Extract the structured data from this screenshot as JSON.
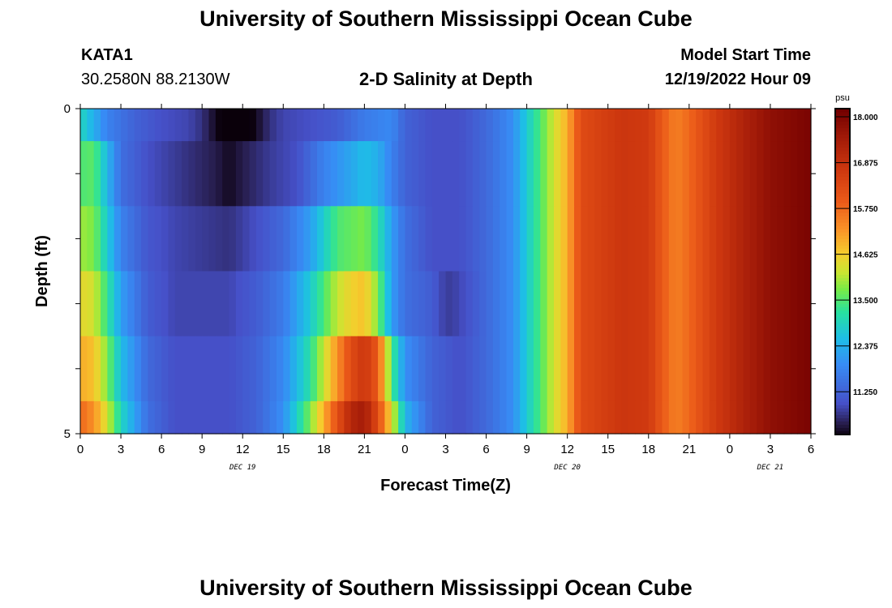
{
  "header": {
    "title": "University of Southern Mississippi Ocean Cube",
    "station": "KATA1",
    "coords": "30.2580N  88.2130W",
    "plot_title": "2-D Salinity at Depth",
    "model_label": "Model Start Time",
    "model_time": "12/19/2022 Hour 09"
  },
  "footer": {
    "title": "University of Southern Mississippi Ocean Cube"
  },
  "chart_data": {
    "type": "heatmap",
    "title": "2-D Salinity at Depth",
    "xlabel": "Forecast Time(Z)",
    "ylabel": "Depth (ft)",
    "x_hours": [
      0,
      3,
      6,
      9,
      12,
      15,
      18,
      21,
      24,
      27,
      30,
      33,
      36,
      39,
      42,
      45,
      48,
      51,
      54
    ],
    "x_tick_labels": [
      "0",
      "3",
      "6",
      "9",
      "12",
      "15",
      "18",
      "21",
      "0",
      "3",
      "6",
      "9",
      "12",
      "15",
      "18",
      "21",
      "0",
      "3",
      "6"
    ],
    "date_labels": [
      {
        "hour": 12,
        "label": "DEC 19"
      },
      {
        "hour": 36,
        "label": "DEC 20"
      },
      {
        "hour": 51,
        "label": "DEC 21"
      }
    ],
    "xlim": [
      0,
      54
    ],
    "y_tick_labels": [
      "0",
      "5"
    ],
    "ylim": [
      0,
      5
    ],
    "depth_levels": [
      0,
      1,
      2,
      3,
      4,
      5
    ],
    "colorbar": {
      "unit": "psu",
      "min": 10.2,
      "max": 18.2,
      "tick_labels": [
        "18.000",
        "16.875",
        "15.750",
        "14.625",
        "13.500",
        "12.375",
        "11.250"
      ],
      "tick_values": [
        18.0,
        16.875,
        15.75,
        14.625,
        13.5,
        12.375,
        11.25
      ]
    },
    "salinity_by_depth": [
      {
        "depth": 0.25,
        "points": [
          [
            0,
            13.0
          ],
          [
            2,
            11.8
          ],
          [
            4,
            11.3
          ],
          [
            6,
            11.0
          ],
          [
            8,
            10.9
          ],
          [
            9,
            10.7
          ],
          [
            10,
            10.3
          ],
          [
            11,
            10.0
          ],
          [
            11.5,
            9.6
          ],
          [
            12,
            10.0
          ],
          [
            13,
            10.3
          ],
          [
            14,
            10.7
          ],
          [
            15,
            10.9
          ],
          [
            17,
            11.0
          ],
          [
            19,
            11.2
          ],
          [
            21,
            11.7
          ],
          [
            23,
            11.9
          ],
          [
            24,
            11.3
          ],
          [
            26,
            11.0
          ],
          [
            28,
            11.0
          ],
          [
            30,
            11.4
          ],
          [
            32,
            12.0
          ],
          [
            33,
            12.8
          ],
          [
            34,
            13.5
          ],
          [
            35,
            14.3
          ],
          [
            36,
            15.0
          ],
          [
            37,
            16.3
          ],
          [
            40,
            16.8
          ],
          [
            42,
            16.7
          ],
          [
            43,
            16.0
          ],
          [
            44,
            15.5
          ],
          [
            45,
            15.8
          ],
          [
            47,
            16.7
          ],
          [
            49,
            17.3
          ],
          [
            51,
            17.8
          ],
          [
            54,
            18.1
          ]
        ]
      },
      {
        "depth": 1,
        "points": [
          [
            0,
            13.5
          ],
          [
            1,
            13.6
          ],
          [
            2,
            12.5
          ],
          [
            3,
            11.5
          ],
          [
            5,
            11.0
          ],
          [
            7,
            10.8
          ],
          [
            9,
            10.6
          ],
          [
            10,
            10.5
          ],
          [
            11,
            10.3
          ],
          [
            12,
            10.5
          ],
          [
            14,
            10.8
          ],
          [
            16,
            11.0
          ],
          [
            18,
            11.8
          ],
          [
            20,
            12.3
          ],
          [
            21,
            12.6
          ],
          [
            22,
            12.4
          ],
          [
            23,
            11.8
          ],
          [
            24,
            11.3
          ],
          [
            26,
            11.0
          ],
          [
            28,
            11.0
          ],
          [
            30,
            11.4
          ],
          [
            32,
            12.0
          ],
          [
            33,
            12.8
          ],
          [
            34,
            13.5
          ],
          [
            35,
            14.3
          ],
          [
            36,
            15.0
          ],
          [
            37,
            16.3
          ],
          [
            40,
            16.8
          ],
          [
            42,
            16.7
          ],
          [
            43,
            16.0
          ],
          [
            44,
            15.5
          ],
          [
            45,
            15.8
          ],
          [
            47,
            16.7
          ],
          [
            49,
            17.3
          ],
          [
            51,
            17.8
          ],
          [
            54,
            18.1
          ]
        ]
      },
      {
        "depth": 2,
        "points": [
          [
            0,
            14.0
          ],
          [
            1,
            13.8
          ],
          [
            2,
            12.8
          ],
          [
            3,
            11.8
          ],
          [
            5,
            11.1
          ],
          [
            7,
            10.9
          ],
          [
            9,
            10.8
          ],
          [
            11,
            10.7
          ],
          [
            13,
            11.0
          ],
          [
            15,
            11.4
          ],
          [
            17,
            12.2
          ],
          [
            19,
            13.5
          ],
          [
            21,
            13.8
          ],
          [
            22,
            13.2
          ],
          [
            23,
            12.2
          ],
          [
            24,
            11.5
          ],
          [
            26,
            11.0
          ],
          [
            28,
            11.0
          ],
          [
            30,
            11.4
          ],
          [
            32,
            12.0
          ],
          [
            33,
            12.8
          ],
          [
            34,
            13.5
          ],
          [
            35,
            14.3
          ],
          [
            36,
            15.0
          ],
          [
            37,
            16.3
          ],
          [
            40,
            16.8
          ],
          [
            42,
            16.7
          ],
          [
            43,
            16.0
          ],
          [
            44,
            15.5
          ],
          [
            45,
            15.8
          ],
          [
            47,
            16.7
          ],
          [
            49,
            17.3
          ],
          [
            51,
            17.8
          ],
          [
            54,
            18.1
          ]
        ]
      },
      {
        "depth": 3,
        "points": [
          [
            0,
            14.5
          ],
          [
            1,
            14.3
          ],
          [
            2,
            13.3
          ],
          [
            3,
            12.2
          ],
          [
            5,
            11.2
          ],
          [
            7,
            10.9
          ],
          [
            9,
            10.9
          ],
          [
            11,
            10.9
          ],
          [
            13,
            11.2
          ],
          [
            15,
            11.7
          ],
          [
            17,
            12.8
          ],
          [
            19,
            14.2
          ],
          [
            20,
            14.6
          ],
          [
            21,
            14.8
          ],
          [
            22,
            13.8
          ],
          [
            23,
            12.2
          ],
          [
            24,
            11.5
          ],
          [
            26,
            11.2
          ],
          [
            27,
            10.8
          ],
          [
            28,
            10.9
          ],
          [
            30,
            11.4
          ],
          [
            32,
            12.0
          ],
          [
            33,
            12.8
          ],
          [
            34,
            13.5
          ],
          [
            35,
            14.3
          ],
          [
            36,
            15.0
          ],
          [
            37,
            16.3
          ],
          [
            40,
            16.8
          ],
          [
            42,
            16.7
          ],
          [
            43,
            16.0
          ],
          [
            44,
            15.5
          ],
          [
            45,
            15.8
          ],
          [
            47,
            16.7
          ],
          [
            49,
            17.3
          ],
          [
            51,
            17.8
          ],
          [
            54,
            18.1
          ]
        ]
      },
      {
        "depth": 4,
        "points": [
          [
            0,
            15.0
          ],
          [
            1,
            14.8
          ],
          [
            2,
            13.8
          ],
          [
            3,
            12.6
          ],
          [
            5,
            11.4
          ],
          [
            7,
            11.0
          ],
          [
            9,
            11.0
          ],
          [
            11,
            11.0
          ],
          [
            13,
            11.3
          ],
          [
            15,
            11.9
          ],
          [
            17,
            13.2
          ],
          [
            19,
            15.3
          ],
          [
            20,
            16.3
          ],
          [
            21,
            16.8
          ],
          [
            22,
            16.0
          ],
          [
            23,
            13.5
          ],
          [
            24,
            12.0
          ],
          [
            26,
            11.3
          ],
          [
            28,
            11.0
          ],
          [
            30,
            11.4
          ],
          [
            32,
            12.0
          ],
          [
            33,
            12.8
          ],
          [
            34,
            13.5
          ],
          [
            35,
            14.3
          ],
          [
            36,
            15.0
          ],
          [
            37,
            16.3
          ],
          [
            40,
            16.8
          ],
          [
            42,
            16.7
          ],
          [
            43,
            16.0
          ],
          [
            44,
            15.5
          ],
          [
            45,
            15.8
          ],
          [
            47,
            16.7
          ],
          [
            49,
            17.3
          ],
          [
            51,
            17.8
          ],
          [
            54,
            18.1
          ]
        ]
      },
      {
        "depth": 4.75,
        "points": [
          [
            0,
            15.8
          ],
          [
            1,
            15.3
          ],
          [
            2,
            14.3
          ],
          [
            3,
            13.0
          ],
          [
            5,
            11.5
          ],
          [
            7,
            11.0
          ],
          [
            9,
            11.0
          ],
          [
            11,
            11.0
          ],
          [
            13,
            11.3
          ],
          [
            15,
            12.0
          ],
          [
            17,
            13.8
          ],
          [
            19,
            16.2
          ],
          [
            20,
            17.2
          ],
          [
            21,
            17.5
          ],
          [
            22,
            16.3
          ],
          [
            23,
            14.5
          ],
          [
            24,
            12.5
          ],
          [
            26,
            11.3
          ],
          [
            28,
            11.0
          ],
          [
            30,
            11.4
          ],
          [
            32,
            12.0
          ],
          [
            33,
            12.8
          ],
          [
            34,
            13.5
          ],
          [
            35,
            14.3
          ],
          [
            36,
            15.0
          ],
          [
            37,
            16.3
          ],
          [
            40,
            16.8
          ],
          [
            42,
            16.7
          ],
          [
            43,
            16.0
          ],
          [
            44,
            15.5
          ],
          [
            45,
            15.8
          ],
          [
            47,
            16.7
          ],
          [
            49,
            17.3
          ],
          [
            51,
            17.8
          ],
          [
            54,
            18.1
          ]
        ]
      }
    ]
  }
}
